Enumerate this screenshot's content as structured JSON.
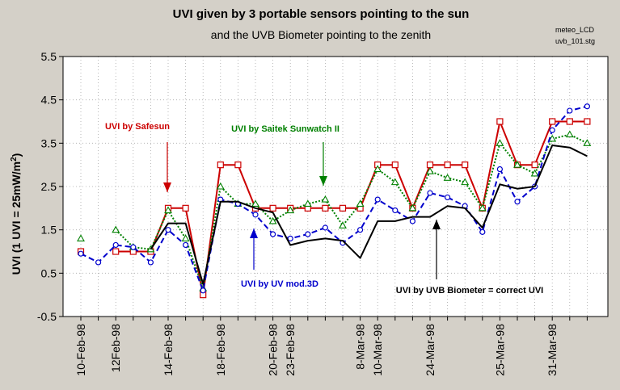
{
  "title": "UVI given by 3 portable sensors pointing to the sun",
  "subtitle": "and the UVB Biometer pointing to the zenith",
  "meta_lines": [
    "meteo_LCD",
    "uvb_101.stg"
  ],
  "chart_data": {
    "type": "line",
    "title": "UVI given by 3 portable sensors pointing to the sun",
    "subtitle": "and the UVB Biometer pointing to the zenith",
    "ylabel": "UVI  (1 UVI = 25mW/m²)",
    "ylabel_main": "UVI  (1 UVI = 25mW/m",
    "ylabel_sup": "2",
    "ylabel_tail": ")",
    "xlabel": "",
    "ylim": [
      -0.5,
      5.5
    ],
    "yticks": [
      "-0.5",
      "0.5",
      "1.5",
      "2.5",
      "3.5",
      "4.5",
      "5.5"
    ],
    "n_points": 30,
    "xtick_labels": [
      {
        "i": 0,
        "label": "10-Feb-98"
      },
      {
        "i": 2,
        "label": "12Feb-98"
      },
      {
        "i": 5,
        "label": "14-Feb-98"
      },
      {
        "i": 8,
        "label": "18-Feb-98"
      },
      {
        "i": 11,
        "label": "20-Feb-98"
      },
      {
        "i": 12,
        "label": "23-Feb-98"
      },
      {
        "i": 16,
        "label": "8-Mar-98"
      },
      {
        "i": 17,
        "label": "10-Mar-98"
      },
      {
        "i": 20,
        "label": "24-Mar-98"
      },
      {
        "i": 24,
        "label": "25-Mar-98"
      },
      {
        "i": 27,
        "label": "31-Mar-98"
      }
    ],
    "grid": true,
    "series": [
      {
        "name": "UVI by Safesun",
        "color": "#cc0000",
        "style": "solid",
        "marker": "square",
        "values": [
          1.0,
          null,
          1.0,
          1.0,
          1.0,
          2.0,
          2.0,
          0.0,
          3.0,
          3.0,
          2.0,
          2.0,
          2.0,
          2.0,
          2.0,
          2.0,
          2.0,
          3.0,
          3.0,
          2.0,
          3.0,
          3.0,
          3.0,
          2.0,
          4.0,
          3.0,
          3.0,
          4.0,
          4.0,
          4.0
        ]
      },
      {
        "name": "UVI by Saitek Sunwatch II",
        "color": "#008000",
        "style": "dotted",
        "marker": "triangle",
        "values": [
          1.3,
          null,
          1.5,
          1.1,
          1.05,
          1.95,
          1.3,
          0.15,
          2.5,
          2.1,
          2.1,
          1.7,
          1.95,
          2.1,
          2.2,
          1.6,
          2.1,
          2.9,
          2.6,
          2.0,
          2.85,
          2.7,
          2.6,
          2.0,
          3.5,
          3.0,
          2.8,
          3.6,
          3.7,
          3.5
        ]
      },
      {
        "name": "UVI by UV mod.3D",
        "color": "#0000cc",
        "style": "dashed",
        "marker": "circle",
        "values": [
          0.95,
          0.75,
          1.15,
          1.1,
          0.75,
          1.5,
          1.15,
          0.1,
          2.2,
          2.1,
          1.85,
          1.4,
          1.3,
          1.4,
          1.55,
          1.2,
          1.5,
          2.2,
          1.95,
          1.7,
          2.35,
          2.25,
          2.05,
          1.45,
          2.9,
          2.15,
          2.5,
          3.8,
          4.25,
          4.35
        ]
      },
      {
        "name": "UVI by UVB Biometer = correct UVI",
        "color": "#000000",
        "style": "solid",
        "marker": "none",
        "values": [
          null,
          null,
          null,
          null,
          1.05,
          1.65,
          1.65,
          0.25,
          2.15,
          2.15,
          2.0,
          1.9,
          1.15,
          1.25,
          1.3,
          1.25,
          0.85,
          1.7,
          1.7,
          1.8,
          1.8,
          2.05,
          2.0,
          1.55,
          2.55,
          2.45,
          2.5,
          3.45,
          3.4,
          3.2
        ]
      }
    ],
    "annotations": [
      {
        "text": "UVI by Safesun",
        "color": "#cc0000"
      },
      {
        "text": "UVI by Saitek Sunwatch II",
        "color": "#008000"
      },
      {
        "text": "UVI by UV mod.3D",
        "color": "#0000cc"
      },
      {
        "text": "UVI by UVB Biometer = correct UVI",
        "color": "#000000"
      }
    ]
  }
}
